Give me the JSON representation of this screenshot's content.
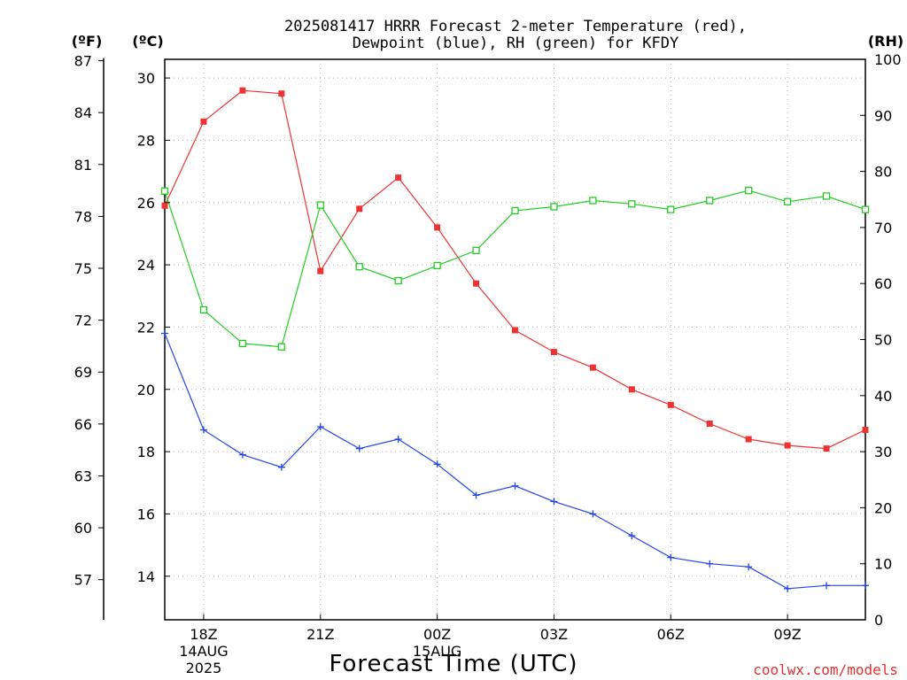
{
  "chart_data": {
    "type": "line",
    "title_line1": "2025081417 HRRR Forecast 2-meter Temperature (red),",
    "title_line2": "Dewpoint (blue), RH (green) for KFDY",
    "xlabel": "Forecast Time (UTC)",
    "credit": "coolwx.com/models",
    "axis_labels": {
      "fahrenheit": "(ºF)",
      "celsius": "(ºC)",
      "rh": "(RH)"
    },
    "x_start_hour": 17,
    "x_end_hour": 35,
    "x_ticks": [
      {
        "hour": 18,
        "label": "18Z",
        "sub1": "14AUG",
        "sub2": "2025"
      },
      {
        "hour": 21,
        "label": "21Z",
        "sub1": "",
        "sub2": ""
      },
      {
        "hour": 24,
        "label": "00Z",
        "sub1": "15AUG",
        "sub2": ""
      },
      {
        "hour": 27,
        "label": "03Z",
        "sub1": "",
        "sub2": ""
      },
      {
        "hour": 30,
        "label": "06Z",
        "sub1": "",
        "sub2": ""
      },
      {
        "hour": 33,
        "label": "09Z",
        "sub1": "",
        "sub2": ""
      }
    ],
    "celsius_range": [
      12.6,
      30.6
    ],
    "celsius_ticks": [
      14,
      16,
      18,
      20,
      22,
      24,
      26,
      28,
      30
    ],
    "fahrenheit_ticks": [
      57,
      60,
      63,
      66,
      69,
      72,
      75,
      78,
      81,
      84,
      87
    ],
    "rh_range": [
      0,
      100
    ],
    "rh_ticks": [
      0,
      10,
      20,
      30,
      40,
      50,
      60,
      70,
      80,
      90,
      100
    ],
    "grid": true,
    "series": [
      {
        "name": "Temperature",
        "axis": "celsius",
        "color": "#ee3333",
        "marker": "filled-square",
        "values": [
          25.9,
          28.6,
          29.6,
          29.5,
          23.8,
          25.8,
          26.8,
          25.2,
          23.4,
          21.9,
          21.2,
          20.7,
          20.0,
          19.5,
          18.9,
          18.4,
          18.2,
          18.1,
          18.7
        ]
      },
      {
        "name": "Dewpoint",
        "axis": "celsius",
        "color": "#2244ee",
        "marker": "plus",
        "values": [
          21.8,
          18.7,
          17.9,
          17.5,
          18.8,
          18.1,
          18.4,
          17.6,
          16.6,
          16.9,
          16.4,
          16.0,
          15.3,
          14.6,
          14.4,
          14.3,
          13.6,
          13.7,
          13.7
        ]
      },
      {
        "name": "RH",
        "axis": "rh",
        "color": "#22cc22",
        "marker": "open-square",
        "values": [
          76.5,
          55.3,
          49.3,
          48.7,
          74.0,
          63.0,
          60.5,
          63.2,
          65.9,
          73.0,
          73.7,
          74.8,
          74.2,
          73.2,
          74.8,
          76.6,
          74.6,
          75.6,
          73.2
        ]
      }
    ]
  }
}
